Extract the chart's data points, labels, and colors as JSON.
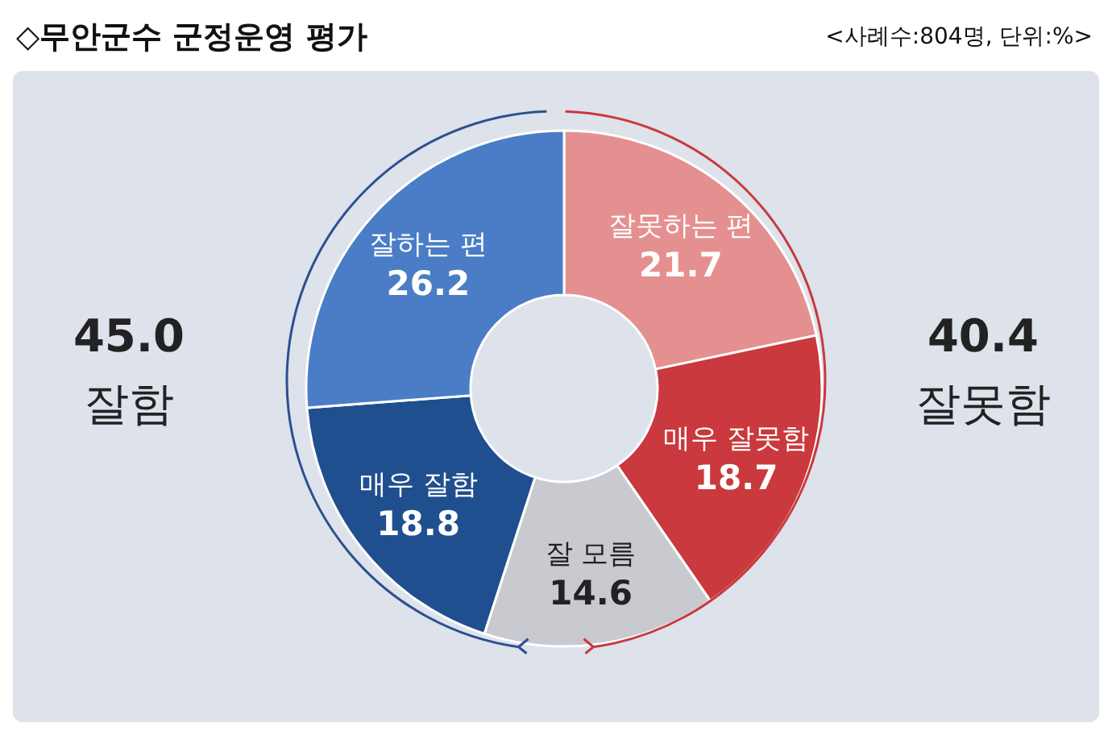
{
  "chart_data": {
    "type": "donut",
    "title": "◇무안군수 군정운영 평가",
    "subtitle": "<사례수:804명, 단위:%>",
    "categories": [
      "잘못하는 편",
      "매우 잘못함",
      "잘 모름",
      "매우 잘함",
      "잘하는 편"
    ],
    "values": [
      21.7,
      18.7,
      14.6,
      18.8,
      26.2
    ],
    "colors": [
      "#e59090",
      "#c9393d",
      "#c9cacf",
      "#1f4f8f",
      "#4a7dc6"
    ],
    "data_labels": true,
    "annotations": [
      "45.0 잘함",
      "40.4 잘못함"
    ]
  }
}
